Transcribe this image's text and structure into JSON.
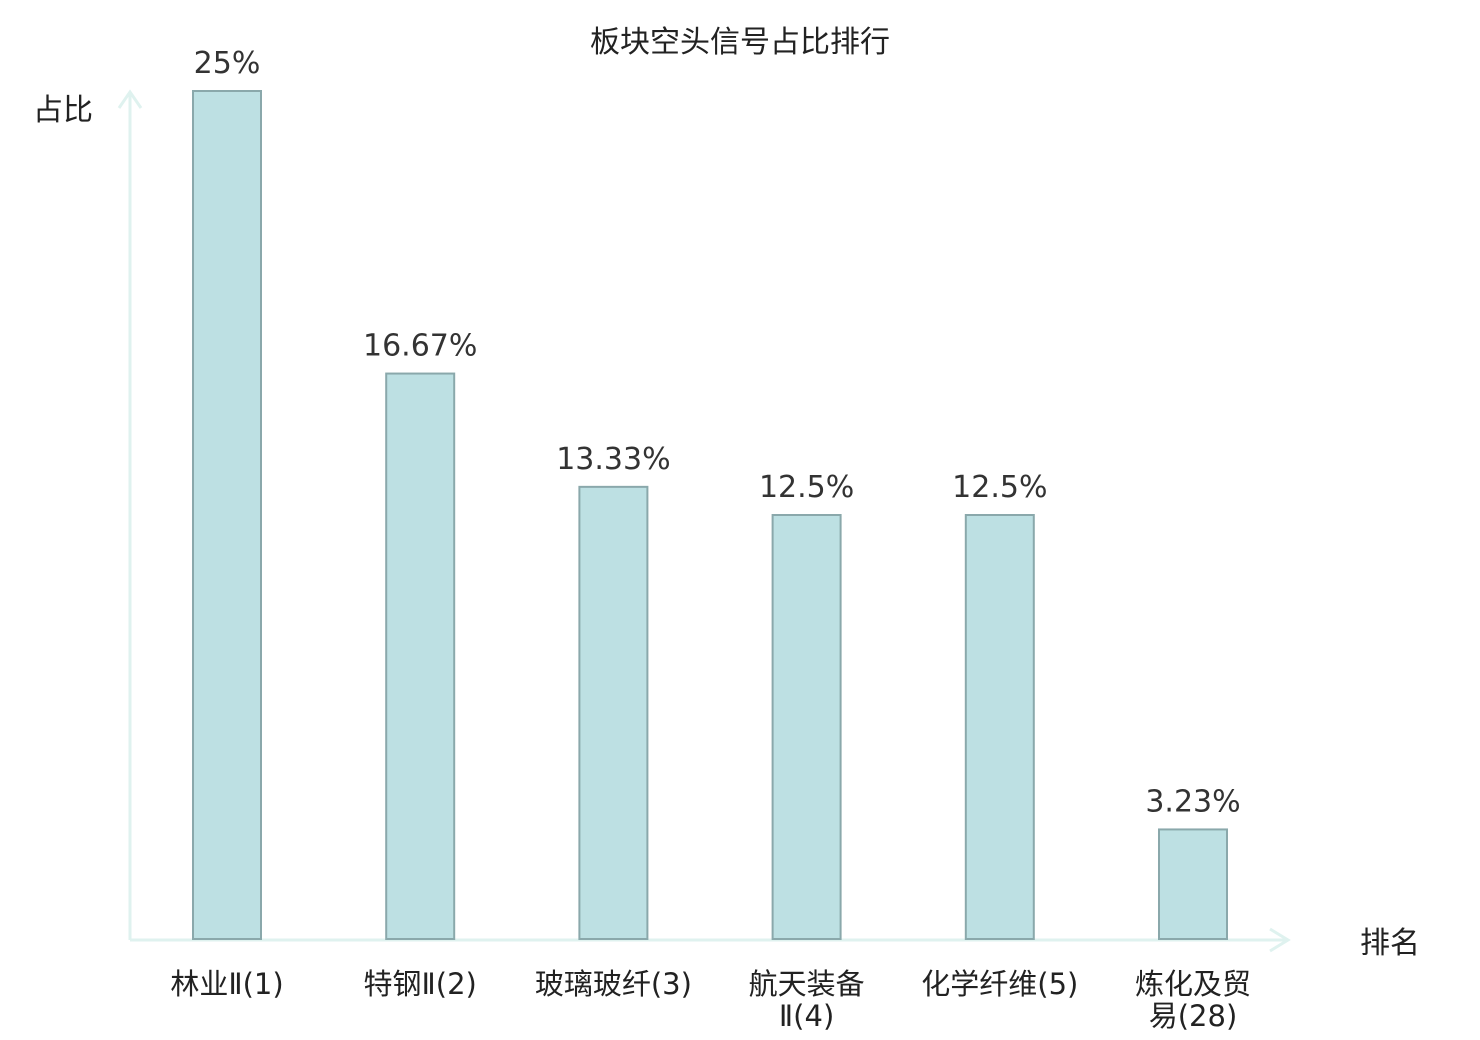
{
  "chart_data": {
    "type": "bar",
    "title": "板块空头信号占比排行",
    "xlabel": "排名",
    "ylabel": "占比",
    "ylim": [
      0,
      25
    ],
    "grid": false,
    "categories": [
      "林业Ⅱ(1)",
      "特钢Ⅱ(2)",
      "玻璃玻纤(3)",
      "航天装备Ⅱ(4)",
      "化学纤维(5)",
      "炼化及贸易(28)"
    ],
    "category_lines": [
      [
        "林业Ⅱ(1)"
      ],
      [
        "特钢Ⅱ(2)"
      ],
      [
        "玻璃玻纤(3)"
      ],
      [
        "航天装备",
        "Ⅱ(4)"
      ],
      [
        "化学纤维(5)"
      ],
      [
        "炼化及贸",
        "易(28)"
      ]
    ],
    "values": [
      25,
      16.67,
      13.33,
      12.5,
      12.5,
      3.23
    ],
    "value_labels": [
      "25%",
      "16.67%",
      "13.33%",
      "12.5%",
      "12.5%",
      "3.23%"
    ],
    "highlight_index": 5,
    "colors": {
      "bar_fill": "#bde0e3",
      "bar_stroke": "#8aa8ab",
      "axis": "#dff2ef",
      "highlight_text": "#e8161c",
      "text": "#222222"
    }
  }
}
